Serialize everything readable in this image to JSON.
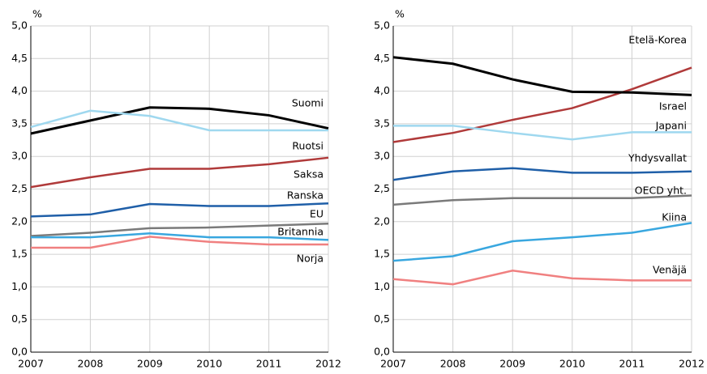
{
  "chart_data": [
    {
      "type": "line",
      "y_label": "%",
      "categories": [
        "2007",
        "2008",
        "2009",
        "2010",
        "2011",
        "2012"
      ],
      "ylim": [
        0,
        5
      ],
      "yticks": [
        {
          "value": 0,
          "label": "0,0"
        },
        {
          "value": 0.5,
          "label": "0,5"
        },
        {
          "value": 1,
          "label": "1,0"
        },
        {
          "value": 1.5,
          "label": "1,5"
        },
        {
          "value": 2,
          "label": "2,0"
        },
        {
          "value": 2.5,
          "label": "2,5"
        },
        {
          "value": 3,
          "label": "3,0"
        },
        {
          "value": 3.5,
          "label": "3,5"
        },
        {
          "value": 4,
          "label": "4,0"
        },
        {
          "value": 4.5,
          "label": "4,5"
        },
        {
          "value": 5,
          "label": "5,0"
        }
      ],
      "grid": true,
      "series": [
        {
          "name": "Suomi",
          "color": "#000000",
          "values": [
            3.35,
            3.55,
            3.75,
            3.73,
            3.63,
            3.43
          ]
        },
        {
          "name": "Ruotsi",
          "color": "#9fd8ef",
          "values": [
            3.45,
            3.7,
            3.62,
            3.4,
            3.4,
            3.4
          ]
        },
        {
          "name": "Saksa",
          "color": "#b03a3a",
          "values": [
            2.53,
            2.68,
            2.81,
            2.81,
            2.88,
            2.98
          ]
        },
        {
          "name": "Ranska",
          "color": "#1f5fa8",
          "values": [
            2.08,
            2.11,
            2.27,
            2.24,
            2.24,
            2.28
          ]
        },
        {
          "name": "EU",
          "color": "#7a7a7a",
          "values": [
            1.78,
            1.83,
            1.9,
            1.91,
            1.94,
            1.97
          ]
        },
        {
          "name": "Britannia",
          "color": "#39a7df",
          "values": [
            1.76,
            1.76,
            1.82,
            1.76,
            1.76,
            1.72
          ]
        },
        {
          "name": "Norja",
          "color": "#f08080",
          "values": [
            1.6,
            1.6,
            1.77,
            1.69,
            1.65,
            1.65
          ]
        }
      ]
    },
    {
      "type": "line",
      "y_label": "%",
      "categories": [
        "2007",
        "2008",
        "2009",
        "2010",
        "2011",
        "2012"
      ],
      "ylim": [
        0,
        5
      ],
      "yticks": [
        {
          "value": 0,
          "label": "0,0"
        },
        {
          "value": 0.5,
          "label": "0,5"
        },
        {
          "value": 1,
          "label": "1,0"
        },
        {
          "value": 1.5,
          "label": "1,5"
        },
        {
          "value": 2,
          "label": "2,0"
        },
        {
          "value": 2.5,
          "label": "2,5"
        },
        {
          "value": 3,
          "label": "3,0"
        },
        {
          "value": 3.5,
          "label": "3,5"
        },
        {
          "value": 4,
          "label": "4,0"
        },
        {
          "value": 4.5,
          "label": "4,5"
        },
        {
          "value": 5,
          "label": "5,0"
        }
      ],
      "grid": true,
      "series": [
        {
          "name": "Etelä-Korea",
          "color": "#b03a3a",
          "values": [
            3.22,
            3.36,
            3.56,
            3.74,
            4.03,
            4.36
          ]
        },
        {
          "name": "Israel",
          "color": "#000000",
          "values": [
            4.52,
            4.42,
            4.18,
            3.99,
            3.98,
            3.94
          ]
        },
        {
          "name": "Japani",
          "color": "#9fd8ef",
          "values": [
            3.47,
            3.47,
            3.36,
            3.26,
            3.37,
            3.37
          ]
        },
        {
          "name": "Yhdysvallat",
          "color": "#1f5fa8",
          "values": [
            2.64,
            2.77,
            2.82,
            2.75,
            2.75,
            2.77
          ]
        },
        {
          "name": "OECD yht.",
          "color": "#7a7a7a",
          "values": [
            2.26,
            2.33,
            2.36,
            2.36,
            2.36,
            2.4
          ]
        },
        {
          "name": "Kiina",
          "color": "#39a7df",
          "values": [
            1.4,
            1.47,
            1.7,
            1.76,
            1.83,
            1.98
          ]
        },
        {
          "name": "Venäjä",
          "color": "#f08080",
          "values": [
            1.12,
            1.04,
            1.25,
            1.13,
            1.1,
            1.1
          ]
        }
      ]
    }
  ]
}
